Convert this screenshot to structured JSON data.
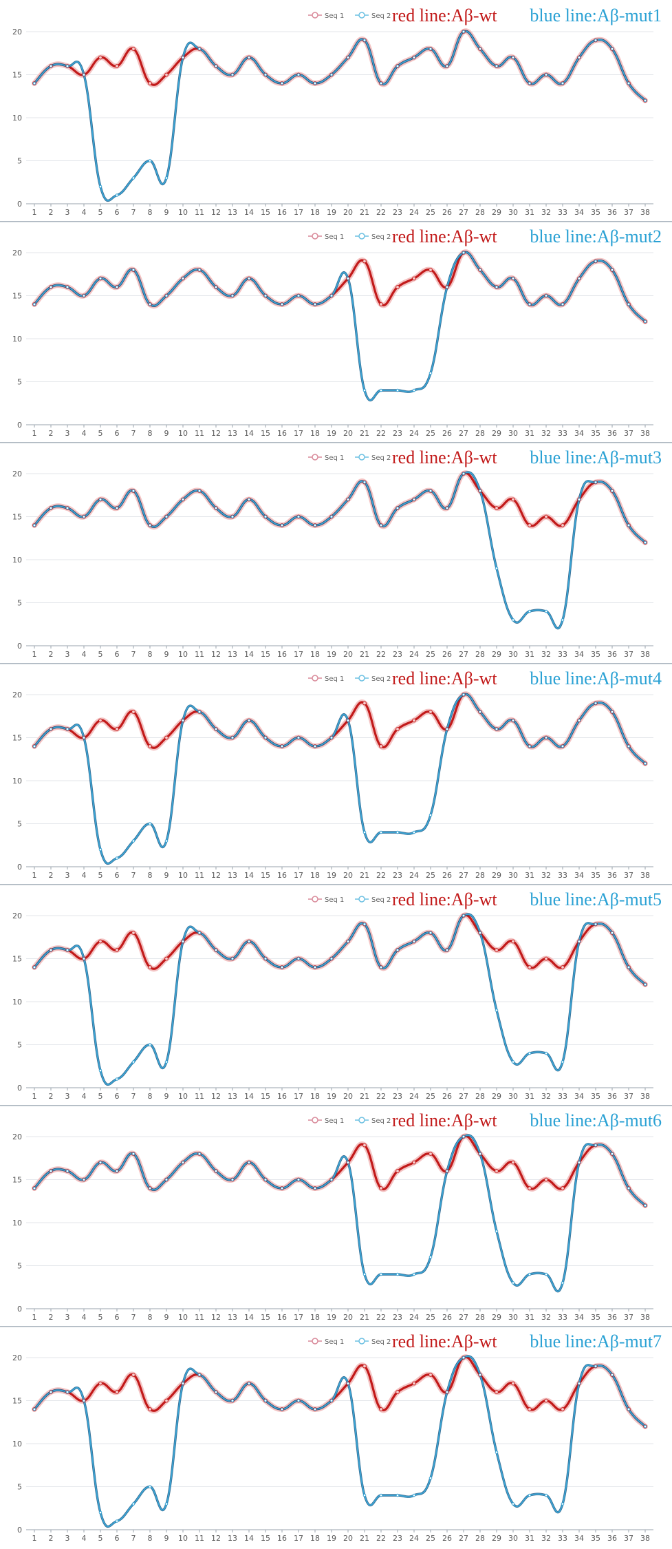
{
  "chart_data": [
    {
      "type": "line",
      "panel_label": "Aβ-mut1",
      "legend": [
        "Seq 1",
        "Seq 2"
      ],
      "annotations": {
        "red": "red line:Aβ-wt",
        "blue": "blue line:Aβ-mut1"
      },
      "x": [
        "1",
        "2",
        "3",
        "4",
        "5",
        "6",
        "7",
        "8",
        "9",
        "10",
        "11",
        "12",
        "13",
        "14",
        "15",
        "16",
        "17",
        "18",
        "19",
        "20",
        "21",
        "22",
        "23",
        "24",
        "25",
        "26",
        "27",
        "28",
        "29",
        "30",
        "31",
        "32",
        "33",
        "34",
        "35",
        "36",
        "37",
        "38"
      ],
      "yticks": [
        0,
        5,
        10,
        15,
        20
      ],
      "ylim": [
        0,
        20
      ],
      "series": [
        {
          "name": "Seq 1",
          "color": "#c21a1a",
          "values": [
            14,
            16,
            16,
            15,
            17,
            16,
            18,
            14,
            15,
            17,
            18,
            16,
            15,
            17,
            15,
            14,
            15,
            14,
            15,
            17,
            19,
            14,
            16,
            17,
            18,
            16,
            20,
            18,
            16,
            17,
            14,
            15,
            14,
            17,
            19,
            18,
            14,
            12
          ]
        },
        {
          "name": "Seq 2",
          "color": "#3aa6d6",
          "values": [
            14,
            16,
            16,
            15,
            2,
            1,
            3,
            5,
            3,
            17,
            18,
            16,
            15,
            17,
            15,
            14,
            15,
            14,
            15,
            17,
            19,
            14,
            16,
            17,
            18,
            16,
            20,
            18,
            16,
            17,
            14,
            15,
            14,
            17,
            19,
            18,
            14,
            12
          ]
        }
      ]
    },
    {
      "type": "line",
      "panel_label": "Aβ-mut2",
      "legend": [
        "Seq 1",
        "Seq 2"
      ],
      "annotations": {
        "red": "red line:Aβ-wt",
        "blue": "blue line:Aβ-mut2"
      },
      "x": [
        "1",
        "2",
        "3",
        "4",
        "5",
        "6",
        "7",
        "8",
        "9",
        "10",
        "11",
        "12",
        "13",
        "14",
        "15",
        "16",
        "17",
        "18",
        "19",
        "20",
        "21",
        "22",
        "23",
        "24",
        "25",
        "26",
        "27",
        "28",
        "29",
        "30",
        "31",
        "32",
        "33",
        "34",
        "35",
        "36",
        "37",
        "38"
      ],
      "yticks": [
        0,
        5,
        10,
        15,
        20
      ],
      "ylim": [
        0,
        20
      ],
      "series": [
        {
          "name": "Seq 1",
          "color": "#c21a1a",
          "values": [
            14,
            16,
            16,
            15,
            17,
            16,
            18,
            14,
            15,
            17,
            18,
            16,
            15,
            17,
            15,
            14,
            15,
            14,
            15,
            17,
            19,
            14,
            16,
            17,
            18,
            16,
            20,
            18,
            16,
            17,
            14,
            15,
            14,
            17,
            19,
            18,
            14,
            12
          ]
        },
        {
          "name": "Seq 2",
          "color": "#3aa6d6",
          "values": [
            14,
            16,
            16,
            15,
            17,
            16,
            18,
            14,
            15,
            17,
            18,
            16,
            15,
            17,
            15,
            14,
            15,
            14,
            15,
            17,
            4,
            4,
            4,
            4,
            6,
            16,
            20,
            18,
            16,
            17,
            14,
            15,
            14,
            17,
            19,
            18,
            14,
            12
          ]
        }
      ]
    },
    {
      "type": "line",
      "panel_label": "Aβ-mut3",
      "legend": [
        "Seq 1",
        "Seq 2"
      ],
      "annotations": {
        "red": "red line:Aβ-wt",
        "blue": "blue line:Aβ-mut3"
      },
      "x": [
        "1",
        "2",
        "3",
        "4",
        "5",
        "6",
        "7",
        "8",
        "9",
        "10",
        "11",
        "12",
        "13",
        "14",
        "15",
        "16",
        "17",
        "18",
        "19",
        "20",
        "21",
        "22",
        "23",
        "24",
        "25",
        "26",
        "27",
        "28",
        "29",
        "30",
        "31",
        "32",
        "33",
        "34",
        "35",
        "36",
        "37",
        "38"
      ],
      "yticks": [
        0,
        5,
        10,
        15,
        20
      ],
      "ylim": [
        0,
        20
      ],
      "series": [
        {
          "name": "Seq 1",
          "color": "#c21a1a",
          "values": [
            14,
            16,
            16,
            15,
            17,
            16,
            18,
            14,
            15,
            17,
            18,
            16,
            15,
            17,
            15,
            14,
            15,
            14,
            15,
            17,
            19,
            14,
            16,
            17,
            18,
            16,
            20,
            18,
            16,
            17,
            14,
            15,
            14,
            17,
            19,
            18,
            14,
            12
          ]
        },
        {
          "name": "Seq 2",
          "color": "#3aa6d6",
          "values": [
            14,
            16,
            16,
            15,
            17,
            16,
            18,
            14,
            15,
            17,
            18,
            16,
            15,
            17,
            15,
            14,
            15,
            14,
            15,
            17,
            19,
            14,
            16,
            17,
            18,
            16,
            20,
            18,
            9,
            3,
            4,
            4,
            3,
            17,
            19,
            18,
            14,
            12
          ]
        }
      ]
    },
    {
      "type": "line",
      "panel_label": "Aβ-mut4",
      "legend": [
        "Seq 1",
        "Seq 2"
      ],
      "annotations": {
        "red": "red line:Aβ-wt",
        "blue": "blue line:Aβ-mut4"
      },
      "x": [
        "1",
        "2",
        "3",
        "4",
        "5",
        "6",
        "7",
        "8",
        "9",
        "10",
        "11",
        "12",
        "13",
        "14",
        "15",
        "16",
        "17",
        "18",
        "19",
        "20",
        "21",
        "22",
        "23",
        "24",
        "25",
        "26",
        "27",
        "28",
        "29",
        "30",
        "31",
        "32",
        "33",
        "34",
        "35",
        "36",
        "37",
        "38"
      ],
      "yticks": [
        0,
        5,
        10,
        15,
        20
      ],
      "ylim": [
        0,
        20
      ],
      "series": [
        {
          "name": "Seq 1",
          "color": "#c21a1a",
          "values": [
            14,
            16,
            16,
            15,
            17,
            16,
            18,
            14,
            15,
            17,
            18,
            16,
            15,
            17,
            15,
            14,
            15,
            14,
            15,
            17,
            19,
            14,
            16,
            17,
            18,
            16,
            20,
            18,
            16,
            17,
            14,
            15,
            14,
            17,
            19,
            18,
            14,
            12
          ]
        },
        {
          "name": "Seq 2",
          "color": "#3aa6d6",
          "values": [
            14,
            16,
            16,
            15,
            2,
            1,
            3,
            5,
            3,
            17,
            18,
            16,
            15,
            17,
            15,
            14,
            15,
            14,
            15,
            17,
            4,
            4,
            4,
            4,
            6,
            16,
            20,
            18,
            16,
            17,
            14,
            15,
            14,
            17,
            19,
            18,
            14,
            12
          ]
        }
      ]
    },
    {
      "type": "line",
      "panel_label": "Aβ-mut5",
      "legend": [
        "Seq 1",
        "Seq 2"
      ],
      "annotations": {
        "red": "red line:Aβ-wt",
        "blue": "blue line:Aβ-mut5"
      },
      "x": [
        "1",
        "2",
        "3",
        "4",
        "5",
        "6",
        "7",
        "8",
        "9",
        "10",
        "11",
        "12",
        "13",
        "14",
        "15",
        "16",
        "17",
        "18",
        "19",
        "20",
        "21",
        "22",
        "23",
        "24",
        "25",
        "26",
        "27",
        "28",
        "29",
        "30",
        "31",
        "32",
        "33",
        "34",
        "35",
        "36",
        "37",
        "38"
      ],
      "yticks": [
        0,
        5,
        10,
        15,
        20
      ],
      "ylim": [
        0,
        20
      ],
      "series": [
        {
          "name": "Seq 1",
          "color": "#c21a1a",
          "values": [
            14,
            16,
            16,
            15,
            17,
            16,
            18,
            14,
            15,
            17,
            18,
            16,
            15,
            17,
            15,
            14,
            15,
            14,
            15,
            17,
            19,
            14,
            16,
            17,
            18,
            16,
            20,
            18,
            16,
            17,
            14,
            15,
            14,
            17,
            19,
            18,
            14,
            12
          ]
        },
        {
          "name": "Seq 2",
          "color": "#3aa6d6",
          "values": [
            14,
            16,
            16,
            15,
            2,
            1,
            3,
            5,
            3,
            17,
            18,
            16,
            15,
            17,
            15,
            14,
            15,
            14,
            15,
            17,
            19,
            14,
            16,
            17,
            18,
            16,
            20,
            18,
            9,
            3,
            4,
            4,
            3,
            17,
            19,
            18,
            14,
            12
          ]
        }
      ]
    },
    {
      "type": "line",
      "panel_label": "Aβ-mut6",
      "legend": [
        "Seq 1",
        "Seq 2"
      ],
      "annotations": {
        "red": "red line:Aβ-wt",
        "blue": "blue line:Aβ-mut6"
      },
      "x": [
        "1",
        "2",
        "3",
        "4",
        "5",
        "6",
        "7",
        "8",
        "9",
        "10",
        "11",
        "12",
        "13",
        "14",
        "15",
        "16",
        "17",
        "18",
        "19",
        "20",
        "21",
        "22",
        "23",
        "24",
        "25",
        "26",
        "27",
        "28",
        "29",
        "30",
        "31",
        "32",
        "33",
        "34",
        "35",
        "36",
        "37",
        "38"
      ],
      "yticks": [
        0,
        5,
        10,
        15,
        20
      ],
      "ylim": [
        0,
        20
      ],
      "series": [
        {
          "name": "Seq 1",
          "color": "#c21a1a",
          "values": [
            14,
            16,
            16,
            15,
            17,
            16,
            18,
            14,
            15,
            17,
            18,
            16,
            15,
            17,
            15,
            14,
            15,
            14,
            15,
            17,
            19,
            14,
            16,
            17,
            18,
            16,
            20,
            18,
            16,
            17,
            14,
            15,
            14,
            17,
            19,
            18,
            14,
            12
          ]
        },
        {
          "name": "Seq 2",
          "color": "#3aa6d6",
          "values": [
            14,
            16,
            16,
            15,
            17,
            16,
            18,
            14,
            15,
            17,
            18,
            16,
            15,
            17,
            15,
            14,
            15,
            14,
            15,
            17,
            4,
            4,
            4,
            4,
            6,
            16,
            20,
            18,
            9,
            3,
            4,
            4,
            3,
            17,
            19,
            18,
            14,
            12
          ]
        }
      ]
    },
    {
      "type": "line",
      "panel_label": "Aβ-mut7",
      "legend": [
        "Seq 1",
        "Seq 2"
      ],
      "annotations": {
        "red": "red line:Aβ-wt",
        "blue": "blue line:Aβ-mut7"
      },
      "x": [
        "1",
        "2",
        "3",
        "4",
        "5",
        "6",
        "7",
        "8",
        "9",
        "10",
        "11",
        "12",
        "13",
        "14",
        "15",
        "16",
        "17",
        "18",
        "19",
        "20",
        "21",
        "22",
        "23",
        "24",
        "25",
        "26",
        "27",
        "28",
        "29",
        "30",
        "31",
        "32",
        "33",
        "34",
        "35",
        "36",
        "37",
        "38"
      ],
      "yticks": [
        0,
        5,
        10,
        15,
        20
      ],
      "ylim": [
        0,
        20
      ],
      "series": [
        {
          "name": "Seq 1",
          "color": "#c21a1a",
          "values": [
            14,
            16,
            16,
            15,
            17,
            16,
            18,
            14,
            15,
            17,
            18,
            16,
            15,
            17,
            15,
            14,
            15,
            14,
            15,
            17,
            19,
            14,
            16,
            17,
            18,
            16,
            20,
            18,
            16,
            17,
            14,
            15,
            14,
            17,
            19,
            18,
            14,
            12
          ]
        },
        {
          "name": "Seq 2",
          "color": "#3aa6d6",
          "values": [
            14,
            16,
            16,
            15,
            2,
            1,
            3,
            5,
            3,
            17,
            18,
            16,
            15,
            17,
            15,
            14,
            15,
            14,
            15,
            17,
            4,
            4,
            4,
            4,
            6,
            16,
            20,
            18,
            9,
            3,
            4,
            4,
            3,
            17,
            19,
            18,
            14,
            12
          ]
        }
      ]
    }
  ]
}
